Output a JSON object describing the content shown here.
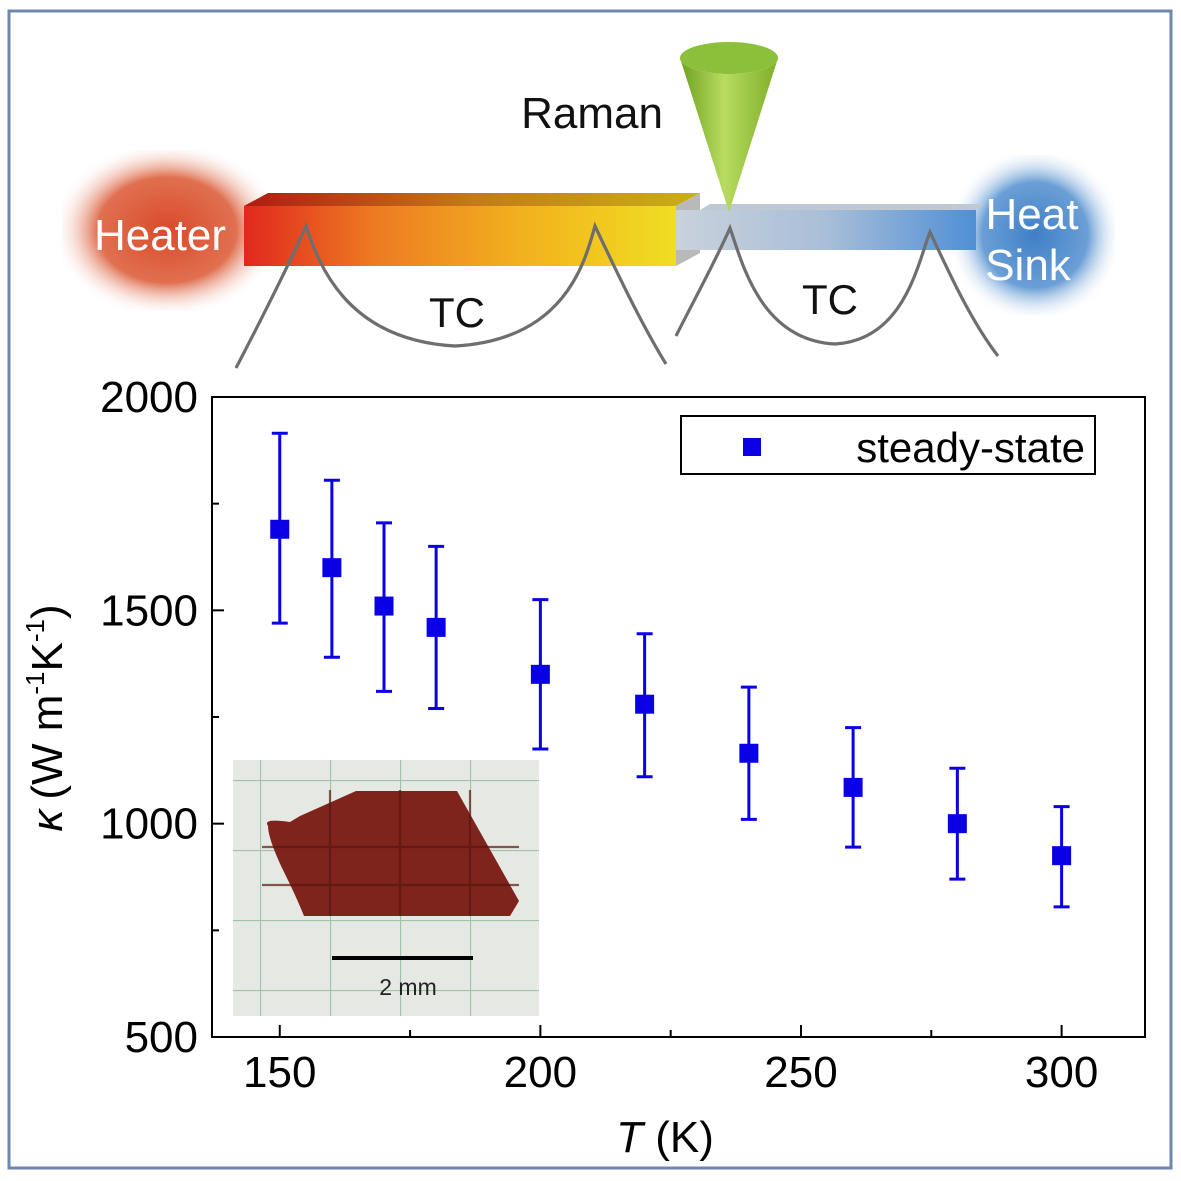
{
  "diagram": {
    "heater_label": "Heater",
    "sink_label_line1": "Heat",
    "sink_label_line2": "Sink",
    "raman_label": "Raman",
    "tc_left_label": "TC",
    "tc_right_label": "TC"
  },
  "inset": {
    "scale_label": "2 mm"
  },
  "colors": {
    "series": "#0a00e6",
    "frame_border": "#6f86b0",
    "axis": "#000000"
  },
  "chart_data": {
    "type": "scatter",
    "title": "",
    "xlabel_italic": "T",
    "xlabel_unit": "(K)",
    "ylabel_symbol": "κ",
    "ylabel_unit": "(W m-1K-1)",
    "xlim": [
      137,
      316
    ],
    "ylim": [
      500,
      2000
    ],
    "x_ticks": [
      150,
      200,
      250,
      300
    ],
    "y_ticks": [
      500,
      1000,
      1500,
      2000
    ],
    "legend_position": "top-right",
    "series": [
      {
        "name": "steady-state",
        "marker": "square",
        "x": [
          150,
          160,
          170,
          180,
          200,
          220,
          240,
          260,
          280,
          300
        ],
        "y": [
          1690,
          1600,
          1510,
          1460,
          1350,
          1280,
          1165,
          1085,
          1000,
          925
        ],
        "err_upper": [
          1915,
          1805,
          1705,
          1650,
          1525,
          1445,
          1320,
          1225,
          1130,
          1040
        ],
        "err_lower": [
          1470,
          1390,
          1310,
          1270,
          1175,
          1110,
          1010,
          945,
          870,
          805
        ]
      }
    ]
  }
}
